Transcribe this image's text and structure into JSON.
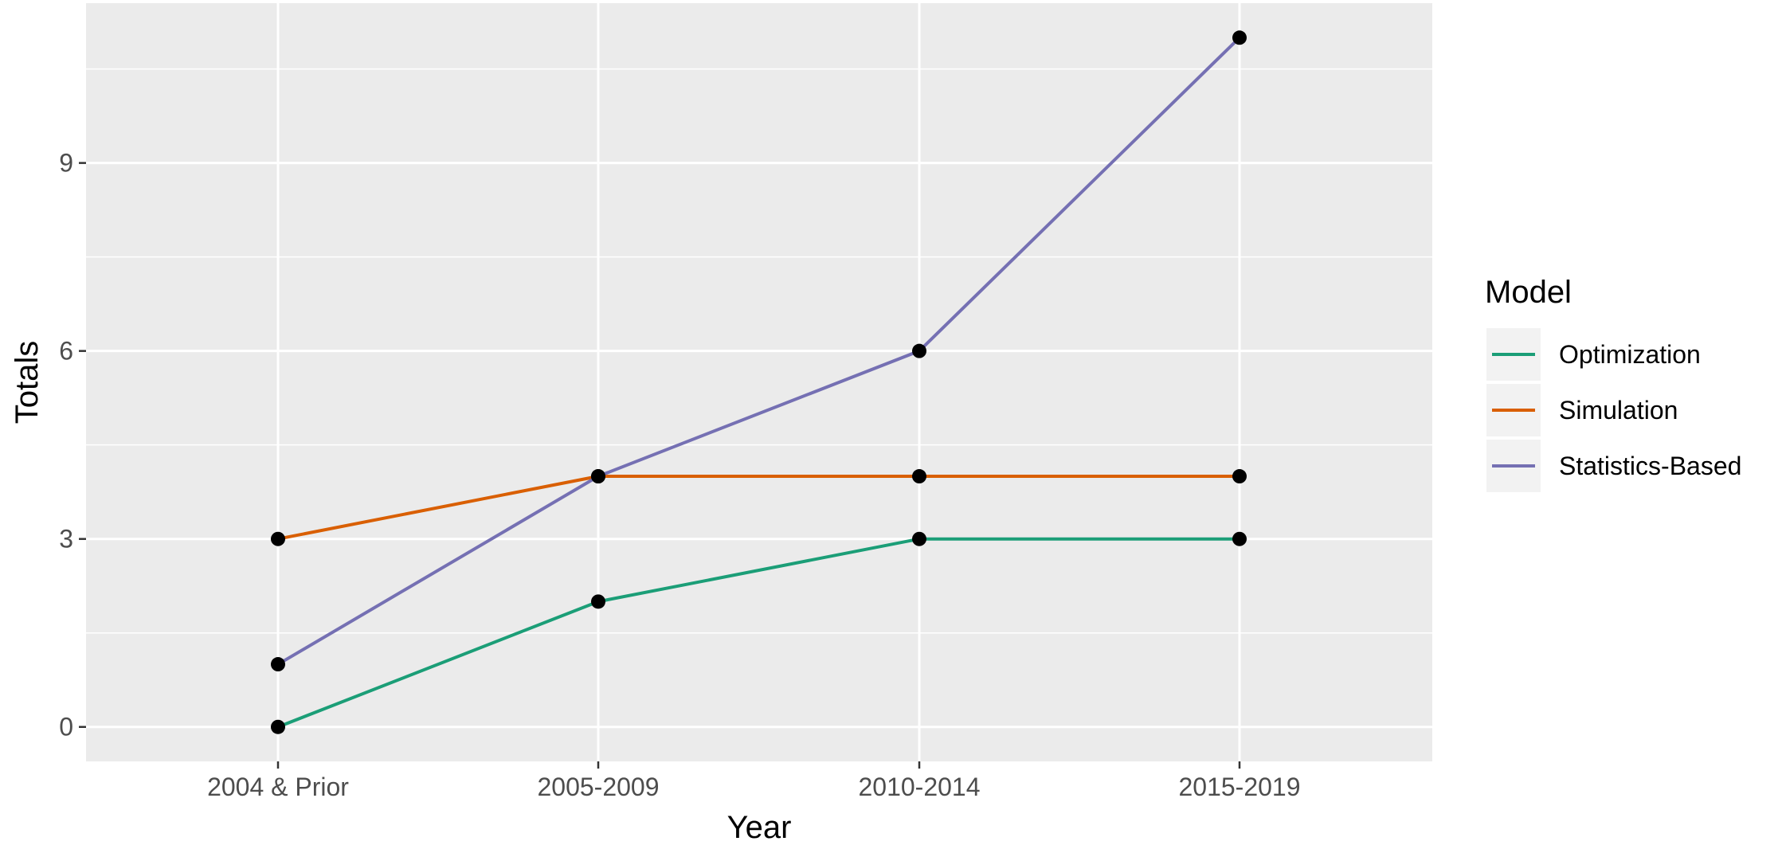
{
  "chart_data": {
    "type": "line",
    "xlabel": "Year",
    "ylabel": "Totals",
    "categories": [
      "2004 & Prior",
      "2005-2009",
      "2010-2014",
      "2015-2019"
    ],
    "yticks": [
      0,
      3,
      6,
      9
    ],
    "ylim": [
      -0.55,
      11.55
    ],
    "grid": true,
    "legend": {
      "title": "Model",
      "position": "right"
    },
    "series": [
      {
        "name": "Optimization",
        "color": "#1b9e77",
        "values": [
          0,
          2,
          3,
          3
        ]
      },
      {
        "name": "Simulation",
        "color": "#d95f02",
        "values": [
          3,
          4,
          4,
          4
        ]
      },
      {
        "name": "Statistics-Based",
        "color": "#7570b3",
        "values": [
          1,
          4,
          6,
          11
        ]
      }
    ],
    "point_color": "#000000",
    "panel_background": "#ebebeb",
    "grid_color": "#ffffff"
  }
}
